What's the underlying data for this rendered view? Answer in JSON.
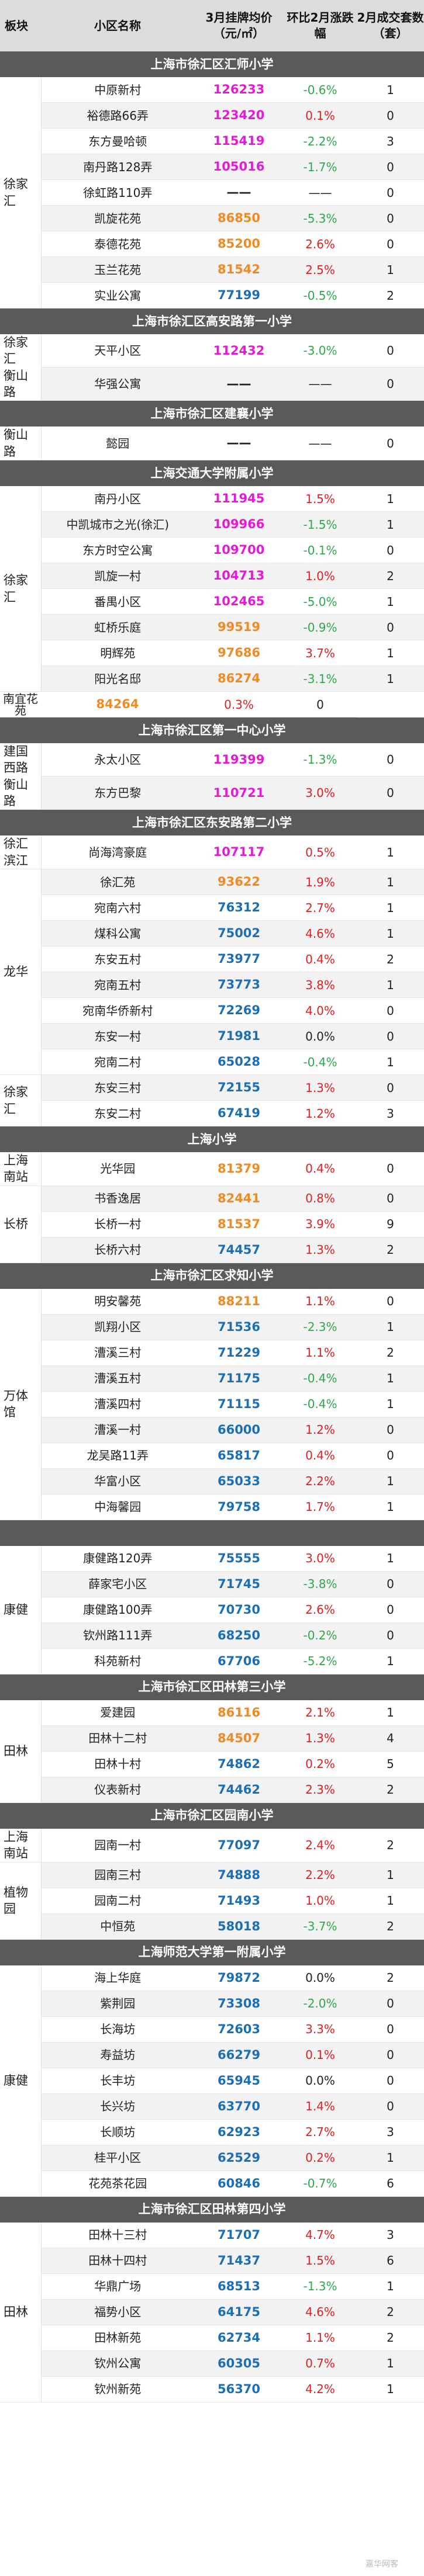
{
  "header": {
    "board": "板块",
    "name": "小区名称",
    "price": "3月挂牌均价（元/㎡）",
    "change": "环比2月涨跌幅",
    "deals": "2月成交套数（套）"
  },
  "colors": {
    "magenta": "#e619d8",
    "orange": "#f08a24",
    "blue": "#1c6fb5",
    "green": "#2ea84a",
    "red": "#e02020",
    "section_bg": "#5a5a5a",
    "header_bg": "#dcdcdc"
  },
  "sections": [
    {
      "title": "上海市徐汇区汇师小学",
      "areas": [
        {
          "labels": [
            "徐家",
            "汇"
          ],
          "rowspan": 9
        }
      ],
      "rows": [
        {
          "name": "中原新村",
          "price": "126233",
          "pc": "magenta",
          "change": "-0.6%",
          "cc": "green",
          "deals": "1"
        },
        {
          "name": "裕德路66弄",
          "price": "123420",
          "pc": "magenta",
          "change": "0.1%",
          "cc": "red",
          "deals": "0"
        },
        {
          "name": "东方曼哈顿",
          "price": "115419",
          "pc": "magenta",
          "change": "-2.2%",
          "cc": "green",
          "deals": "3"
        },
        {
          "name": "南丹路128弄",
          "price": "105016",
          "pc": "magenta",
          "change": "-1.7%",
          "cc": "green",
          "deals": "0"
        },
        {
          "name": "徐虹路110弄",
          "price": "——",
          "pc": "plain",
          "change": "——",
          "cc": "plain",
          "deals": "0"
        },
        {
          "name": "凯旋花苑",
          "price": "86850",
          "pc": "orange",
          "change": "-5.3%",
          "cc": "green",
          "deals": "0"
        },
        {
          "name": "泰德花苑",
          "price": "85200",
          "pc": "orange",
          "change": "2.6%",
          "cc": "red",
          "deals": "0"
        },
        {
          "name": "玉兰花苑",
          "price": "81542",
          "pc": "orange",
          "change": "2.5%",
          "cc": "red",
          "deals": "1"
        },
        {
          "name": "实业公寓",
          "price": "77199",
          "pc": "blue",
          "change": "-0.5%",
          "cc": "green",
          "deals": "2"
        }
      ]
    },
    {
      "title": "上海市徐汇区高安路第一小学",
      "areas": [
        {
          "labels": [
            "徐家",
            "汇",
            "衡山",
            "路"
          ],
          "rowspan": 2
        }
      ],
      "rows": [
        {
          "name": "天平小区",
          "price": "112432",
          "pc": "magenta",
          "change": "-3.0%",
          "cc": "green",
          "deals": "0"
        },
        {
          "name": "华强公寓",
          "price": "——",
          "pc": "plain",
          "change": "——",
          "cc": "plain",
          "deals": "0"
        }
      ]
    },
    {
      "title": "上海市徐汇区建襄小学",
      "areas": [
        {
          "labels": [
            "衡山",
            "路"
          ],
          "rowspan": 1
        }
      ],
      "rows": [
        {
          "name": "懿园",
          "price": "——",
          "pc": "plain",
          "change": "——",
          "cc": "plain",
          "deals": "0"
        }
      ]
    },
    {
      "title": "上海交通大学附属小学",
      "areas": [
        {
          "labels": [
            "徐家",
            "汇"
          ],
          "rowspan": 8
        }
      ],
      "rows": [
        {
          "name": "南丹小区",
          "price": "111945",
          "pc": "magenta",
          "change": "1.5%",
          "cc": "red",
          "deals": "1"
        },
        {
          "name": "中凯城市之光(徐汇)",
          "price": "109966",
          "pc": "magenta",
          "change": "-1.5%",
          "cc": "green",
          "deals": "1"
        },
        {
          "name": "东方时空公寓",
          "price": "109700",
          "pc": "magenta",
          "change": "-0.1%",
          "cc": "green",
          "deals": "0"
        },
        {
          "name": "凯旋一村",
          "price": "104713",
          "pc": "magenta",
          "change": "1.0%",
          "cc": "red",
          "deals": "2"
        },
        {
          "name": "番禺小区",
          "price": "102465",
          "pc": "magenta",
          "change": "-5.0%",
          "cc": "green",
          "deals": "1"
        },
        {
          "name": "虹桥乐庭",
          "price": "99519",
          "pc": "orange",
          "change": "-0.9%",
          "cc": "green",
          "deals": "0"
        },
        {
          "name": "明辉苑",
          "price": "97686",
          "pc": "orange",
          "change": "3.7%",
          "cc": "red",
          "deals": "1"
        },
        {
          "name": "阳光名邸",
          "price": "86274",
          "pc": "orange",
          "change": "-3.1%",
          "cc": "green",
          "deals": "1"
        },
        {
          "name": "南宜花苑",
          "price": "84264",
          "pc": "orange",
          "change": "0.3%",
          "cc": "red",
          "deals": "0"
        }
      ]
    },
    {
      "title": "上海市徐汇区第一中心小学",
      "areas": [
        {
          "labels": [
            "建国",
            "西路",
            "衡山",
            "路"
          ],
          "rowspan": 2
        }
      ],
      "rows": [
        {
          "name": "永太小区",
          "price": "119399",
          "pc": "magenta",
          "change": "-1.3%",
          "cc": "green",
          "deals": "0"
        },
        {
          "name": "东方巴黎",
          "price": "110721",
          "pc": "magenta",
          "change": "3.0%",
          "cc": "red",
          "deals": "0"
        }
      ]
    },
    {
      "title": "上海市徐汇区东安路第二小学",
      "areas": [
        {
          "labels": [
            "徐汇",
            "滨江"
          ],
          "rowspan": 1
        },
        {
          "labels": [
            "龙华"
          ],
          "rowspan": 8
        },
        {
          "labels": [
            "徐家",
            "汇"
          ],
          "rowspan": 2
        }
      ],
      "rows": [
        {
          "name": "尚海湾豪庭",
          "price": "107117",
          "pc": "magenta",
          "change": "0.5%",
          "cc": "red",
          "deals": "1"
        },
        {
          "name": "徐汇苑",
          "price": "93622",
          "pc": "orange",
          "change": "1.9%",
          "cc": "red",
          "deals": "1"
        },
        {
          "name": "宛南六村",
          "price": "76312",
          "pc": "blue",
          "change": "2.7%",
          "cc": "red",
          "deals": "1"
        },
        {
          "name": "煤科公寓",
          "price": "75002",
          "pc": "blue",
          "change": "4.6%",
          "cc": "red",
          "deals": "1"
        },
        {
          "name": "东安五村",
          "price": "73977",
          "pc": "blue",
          "change": "0.4%",
          "cc": "red",
          "deals": "2"
        },
        {
          "name": "宛南五村",
          "price": "73773",
          "pc": "blue",
          "change": "3.8%",
          "cc": "red",
          "deals": "1"
        },
        {
          "name": "宛南华侨新村",
          "price": "72269",
          "pc": "blue",
          "change": "4.0%",
          "cc": "red",
          "deals": "0"
        },
        {
          "name": "东安一村",
          "price": "71981",
          "pc": "blue",
          "change": "0.0%",
          "cc": "plain",
          "deals": "0"
        },
        {
          "name": "宛南二村",
          "price": "65028",
          "pc": "blue",
          "change": "-0.4%",
          "cc": "green",
          "deals": "1"
        },
        {
          "name": "东安三村",
          "price": "72155",
          "pc": "blue",
          "change": "1.3%",
          "cc": "red",
          "deals": "0"
        },
        {
          "name": "东安二村",
          "price": "67419",
          "pc": "blue",
          "change": "1.2%",
          "cc": "red",
          "deals": "3"
        }
      ]
    },
    {
      "title": "上海小学",
      "areas": [
        {
          "labels": [
            "上海",
            "南站"
          ],
          "rowspan": 1
        },
        {
          "labels": [
            "长桥"
          ],
          "rowspan": 3
        }
      ],
      "rows": [
        {
          "name": "光华园",
          "price": "81379",
          "pc": "orange",
          "change": "0.4%",
          "cc": "red",
          "deals": "0"
        },
        {
          "name": "书香逸居",
          "price": "82441",
          "pc": "orange",
          "change": "0.8%",
          "cc": "red",
          "deals": "0"
        },
        {
          "name": "长桥一村",
          "price": "81537",
          "pc": "orange",
          "change": "3.9%",
          "cc": "red",
          "deals": "9"
        },
        {
          "name": "长桥六村",
          "price": "74457",
          "pc": "blue",
          "change": "1.3%",
          "cc": "red",
          "deals": "2"
        }
      ]
    },
    {
      "title": "上海市徐汇区求知小学",
      "areas": [
        {
          "labels": [
            "万体",
            "馆"
          ],
          "rowspan": 9
        }
      ],
      "rows": [
        {
          "name": "明安馨苑",
          "price": "88211",
          "pc": "orange",
          "change": "1.1%",
          "cc": "red",
          "deals": "0"
        },
        {
          "name": "凯翔小区",
          "price": "71536",
          "pc": "blue",
          "change": "-2.3%",
          "cc": "green",
          "deals": "1"
        },
        {
          "name": "漕溪三村",
          "price": "71229",
          "pc": "blue",
          "change": "1.1%",
          "cc": "red",
          "deals": "2"
        },
        {
          "name": "漕溪五村",
          "price": "71175",
          "pc": "blue",
          "change": "-0.4%",
          "cc": "green",
          "deals": "1"
        },
        {
          "name": "漕溪四村",
          "price": "71115",
          "pc": "blue",
          "change": "-0.4%",
          "cc": "green",
          "deals": "1"
        },
        {
          "name": "漕溪一村",
          "price": "66000",
          "pc": "blue",
          "change": "1.2%",
          "cc": "red",
          "deals": "0"
        },
        {
          "name": "龙吴路11弄",
          "price": "65817",
          "pc": "blue",
          "change": "0.4%",
          "cc": "red",
          "deals": "0"
        },
        {
          "name": "华富小区",
          "price": "65033",
          "pc": "blue",
          "change": "2.2%",
          "cc": "red",
          "deals": "1"
        },
        {
          "name": "中海馨园",
          "price": "79758",
          "pc": "blue",
          "change": "1.7%",
          "cc": "red",
          "deals": "1"
        }
      ]
    },
    {
      "title": "",
      "areas": [
        {
          "labels": [
            "康健"
          ],
          "rowspan": 5
        }
      ],
      "rows": [
        {
          "name": "康健路120弄",
          "price": "75555",
          "pc": "blue",
          "change": "3.0%",
          "cc": "red",
          "deals": "1"
        },
        {
          "name": "薛家宅小区",
          "price": "71745",
          "pc": "blue",
          "change": "-3.8%",
          "cc": "green",
          "deals": "0"
        },
        {
          "name": "康健路100弄",
          "price": "70730",
          "pc": "blue",
          "change": "2.6%",
          "cc": "red",
          "deals": "0"
        },
        {
          "name": "钦州路111弄",
          "price": "68250",
          "pc": "blue",
          "change": "-0.2%",
          "cc": "green",
          "deals": "0"
        },
        {
          "name": "科苑新村",
          "price": "67706",
          "pc": "blue",
          "change": "-5.2%",
          "cc": "green",
          "deals": "1"
        }
      ]
    },
    {
      "title": "上海市徐汇区田林第三小学",
      "areas": [
        {
          "labels": [
            "田林"
          ],
          "rowspan": 4
        }
      ],
      "rows": [
        {
          "name": "爱建园",
          "price": "86116",
          "pc": "orange",
          "change": "2.1%",
          "cc": "red",
          "deals": "1"
        },
        {
          "name": "田林十二村",
          "price": "84507",
          "pc": "orange",
          "change": "1.3%",
          "cc": "red",
          "deals": "4"
        },
        {
          "name": "田林十村",
          "price": "74862",
          "pc": "blue",
          "change": "0.2%",
          "cc": "red",
          "deals": "5"
        },
        {
          "name": "仪表新村",
          "price": "74462",
          "pc": "blue",
          "change": "2.3%",
          "cc": "red",
          "deals": "2"
        }
      ]
    },
    {
      "title": "上海市徐汇区园南小学",
      "areas": [
        {
          "labels": [
            "上海",
            "南站"
          ],
          "rowspan": 1
        },
        {
          "labels": [
            "植物",
            "园"
          ],
          "rowspan": 3
        }
      ],
      "rows": [
        {
          "name": "园南一村",
          "price": "77097",
          "pc": "blue",
          "change": "2.4%",
          "cc": "red",
          "deals": "2"
        },
        {
          "name": "园南三村",
          "price": "74888",
          "pc": "blue",
          "change": "2.2%",
          "cc": "red",
          "deals": "1"
        },
        {
          "name": "园南二村",
          "price": "71493",
          "pc": "blue",
          "change": "1.0%",
          "cc": "red",
          "deals": "1"
        },
        {
          "name": "中恒苑",
          "price": "58018",
          "pc": "blue",
          "change": "-3.7%",
          "cc": "green",
          "deals": "2"
        }
      ]
    },
    {
      "title": "上海师范大学第一附属小学",
      "areas": [
        {
          "labels": [
            "康健"
          ],
          "rowspan": 9
        }
      ],
      "rows": [
        {
          "name": "海上华庭",
          "price": "79872",
          "pc": "blue",
          "change": "0.0%",
          "cc": "plain",
          "deals": "2"
        },
        {
          "name": "紫荆园",
          "price": "73308",
          "pc": "blue",
          "change": "-2.0%",
          "cc": "green",
          "deals": "0"
        },
        {
          "name": "长海坊",
          "price": "72603",
          "pc": "blue",
          "change": "3.3%",
          "cc": "red",
          "deals": "0"
        },
        {
          "name": "寿益坊",
          "price": "66279",
          "pc": "blue",
          "change": "0.1%",
          "cc": "red",
          "deals": "0"
        },
        {
          "name": "长丰坊",
          "price": "65945",
          "pc": "blue",
          "change": "0.0%",
          "cc": "plain",
          "deals": "0"
        },
        {
          "name": "长兴坊",
          "price": "63770",
          "pc": "blue",
          "change": "1.4%",
          "cc": "red",
          "deals": "0"
        },
        {
          "name": "长顺坊",
          "price": "62923",
          "pc": "blue",
          "change": "2.7%",
          "cc": "red",
          "deals": "3"
        },
        {
          "name": "桂平小区",
          "price": "62529",
          "pc": "blue",
          "change": "0.2%",
          "cc": "red",
          "deals": "1"
        },
        {
          "name": "花苑茶花园",
          "price": "60846",
          "pc": "blue",
          "change": "-0.7%",
          "cc": "green",
          "deals": "6"
        }
      ]
    },
    {
      "title": "上海市徐汇区田林第四小学",
      "areas": [
        {
          "labels": [
            "田林"
          ],
          "rowspan": 7
        }
      ],
      "rows": [
        {
          "name": "田林十三村",
          "price": "71707",
          "pc": "blue",
          "change": "4.7%",
          "cc": "red",
          "deals": "3"
        },
        {
          "name": "田林十四村",
          "price": "71437",
          "pc": "blue",
          "change": "1.5%",
          "cc": "red",
          "deals": "6"
        },
        {
          "name": "华鼎广场",
          "price": "68513",
          "pc": "blue",
          "change": "-1.3%",
          "cc": "green",
          "deals": "1"
        },
        {
          "name": "福势小区",
          "price": "64175",
          "pc": "blue",
          "change": "4.6%",
          "cc": "red",
          "deals": "2"
        },
        {
          "name": "田林新苑",
          "price": "62734",
          "pc": "blue",
          "change": "1.1%",
          "cc": "red",
          "deals": "2"
        },
        {
          "name": "钦州公寓",
          "price": "60305",
          "pc": "blue",
          "change": "0.7%",
          "cc": "red",
          "deals": "1"
        },
        {
          "name": "钦州新苑",
          "price": "56370",
          "pc": "blue",
          "change": "4.2%",
          "cc": "red",
          "deals": "1"
        }
      ]
    }
  ],
  "footer": {
    "watermark": "嘉华网客"
  }
}
